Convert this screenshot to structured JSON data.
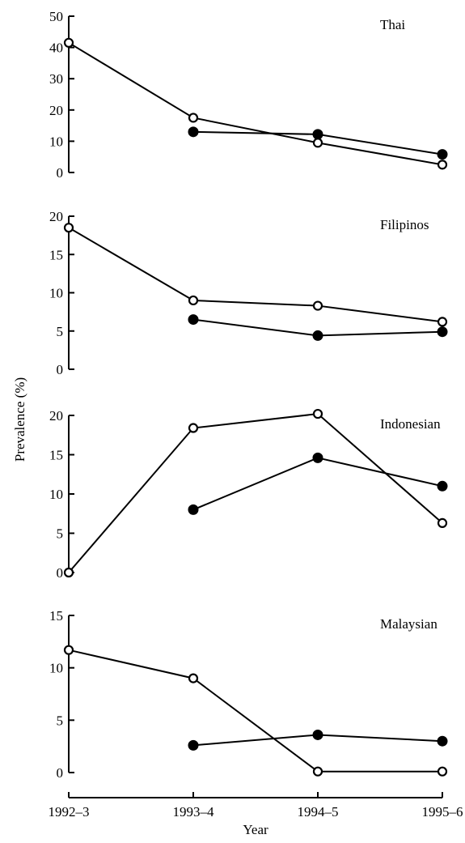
{
  "figure": {
    "ylabel": "Prevalence (%)",
    "xlabel": "Year",
    "x_categories": [
      "1992–3",
      "1993–4",
      "1994–5",
      "1995–6"
    ]
  },
  "chart_data": [
    {
      "type": "line",
      "title": "Thai",
      "ylim": [
        0,
        50
      ],
      "yticks": [
        "0",
        "10",
        "20",
        "30",
        "40",
        "50"
      ],
      "categories": [
        "1992–3",
        "1993–4",
        "1994–5",
        "1995–6"
      ],
      "series": [
        {
          "marker": "open-circle",
          "values": [
            41.5,
            17.5,
            9.5,
            2.5
          ]
        },
        {
          "marker": "filled-circle",
          "values": [
            null,
            13,
            12.2,
            5.8
          ]
        }
      ]
    },
    {
      "type": "line",
      "title": "Filipinos",
      "ylim": [
        0,
        20
      ],
      "yticks": [
        "0",
        "5",
        "10",
        "15",
        "20"
      ],
      "categories": [
        "1992–3",
        "1993–4",
        "1994–5",
        "1995–6"
      ],
      "series": [
        {
          "marker": "open-circle",
          "values": [
            18.5,
            9,
            8.3,
            6.2
          ]
        },
        {
          "marker": "filled-circle",
          "values": [
            null,
            6.5,
            4.4,
            4.9
          ]
        }
      ]
    },
    {
      "type": "line",
      "title": "Indonesian",
      "ylim": [
        0,
        20
      ],
      "yticks": [
        "0",
        "5",
        "10",
        "15",
        "20"
      ],
      "categories": [
        "1992–3",
        "1993–4",
        "1994–5",
        "1995–6"
      ],
      "series": [
        {
          "marker": "open-circle",
          "values": [
            0,
            18.4,
            20.2,
            6.3
          ]
        },
        {
          "marker": "filled-circle",
          "values": [
            null,
            8,
            14.6,
            11
          ]
        }
      ]
    },
    {
      "type": "line",
      "title": "Malaysian",
      "ylim": [
        0,
        15
      ],
      "yticks": [
        "0",
        "5",
        "10",
        "15"
      ],
      "categories": [
        "1992–3",
        "1993–4",
        "1994–5",
        "1995–6"
      ],
      "series": [
        {
          "marker": "open-circle",
          "values": [
            11.7,
            9,
            0.1,
            0.1
          ]
        },
        {
          "marker": "filled-circle",
          "values": [
            null,
            2.6,
            3.6,
            3
          ]
        }
      ]
    }
  ],
  "colors": {
    "ink": "#000000",
    "open_fill": "#ffffff"
  }
}
